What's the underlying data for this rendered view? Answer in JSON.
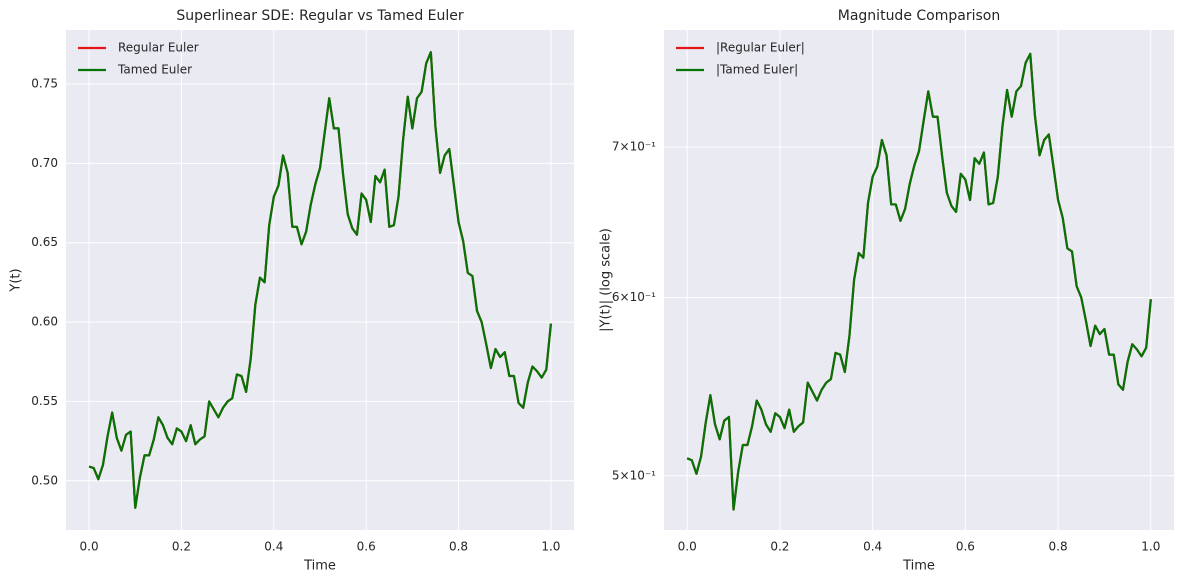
{
  "chart_data": [
    {
      "type": "line",
      "title": "Superlinear SDE: Regular vs Tamed Euler",
      "x_label": "Time",
      "y_label": "Y(t)",
      "x": [
        0,
        0.01,
        0.02,
        0.03,
        0.04,
        0.05,
        0.06,
        0.07,
        0.08,
        0.09,
        0.1,
        0.11,
        0.12,
        0.13,
        0.14,
        0.15,
        0.16,
        0.17,
        0.18,
        0.19,
        0.2,
        0.21,
        0.22,
        0.23,
        0.24,
        0.25,
        0.26,
        0.27,
        0.28,
        0.29,
        0.3,
        0.31,
        0.32,
        0.33,
        0.34,
        0.35,
        0.36,
        0.37,
        0.38,
        0.39,
        0.4,
        0.41,
        0.42,
        0.43,
        0.44,
        0.45,
        0.46,
        0.47,
        0.48,
        0.49,
        0.5,
        0.51,
        0.52,
        0.53,
        0.54,
        0.55,
        0.56,
        0.57,
        0.58,
        0.59,
        0.6,
        0.61,
        0.62,
        0.63,
        0.64,
        0.65,
        0.66,
        0.67,
        0.68,
        0.69,
        0.7,
        0.71,
        0.72,
        0.73,
        0.74,
        0.75,
        0.76,
        0.77,
        0.78,
        0.79,
        0.8,
        0.81,
        0.82,
        0.83,
        0.84,
        0.85,
        0.86,
        0.87,
        0.88,
        0.89,
        0.9,
        0.91,
        0.92,
        0.93,
        0.94,
        0.95,
        0.96,
        0.97,
        0.98,
        0.99,
        1
      ],
      "series": [
        {
          "name": "Regular Euler",
          "color": "#e8141b",
          "values": [
            0.509,
            0.508,
            0.501,
            0.51,
            0.528,
            0.543,
            0.527,
            0.519,
            0.529,
            0.531,
            0.483,
            0.502,
            0.516,
            0.516,
            0.526,
            0.54,
            0.535,
            0.527,
            0.523,
            0.533,
            0.531,
            0.525,
            0.535,
            0.523,
            0.526,
            0.528,
            0.55,
            0.545,
            0.54,
            0.546,
            0.55,
            0.552,
            0.567,
            0.566,
            0.556,
            0.577,
            0.611,
            0.628,
            0.625,
            0.661,
            0.679,
            0.686,
            0.705,
            0.694,
            0.66,
            0.66,
            0.649,
            0.657,
            0.674,
            0.687,
            0.697,
            0.719,
            0.741,
            0.722,
            0.722,
            0.693,
            0.668,
            0.659,
            0.655,
            0.681,
            0.677,
            0.663,
            0.692,
            0.688,
            0.696,
            0.66,
            0.661,
            0.679,
            0.715,
            0.742,
            0.722,
            0.741,
            0.745,
            0.763,
            0.77,
            0.723,
            0.694,
            0.705,
            0.709,
            0.686,
            0.663,
            0.651,
            0.631,
            0.629,
            0.607,
            0.6,
            0.586,
            0.571,
            0.583,
            0.578,
            0.581,
            0.566,
            0.566,
            0.549,
            0.546,
            0.562,
            0.572,
            0.569,
            0.565,
            0.57,
            0.599
          ]
        },
        {
          "name": "Tamed Euler",
          "color": "#067306",
          "values": [
            0.509,
            0.508,
            0.501,
            0.51,
            0.528,
            0.543,
            0.527,
            0.519,
            0.529,
            0.531,
            0.483,
            0.502,
            0.516,
            0.516,
            0.526,
            0.54,
            0.535,
            0.527,
            0.523,
            0.533,
            0.531,
            0.525,
            0.535,
            0.523,
            0.526,
            0.528,
            0.55,
            0.545,
            0.54,
            0.546,
            0.55,
            0.552,
            0.567,
            0.566,
            0.556,
            0.577,
            0.611,
            0.628,
            0.625,
            0.661,
            0.679,
            0.686,
            0.705,
            0.694,
            0.66,
            0.66,
            0.649,
            0.657,
            0.674,
            0.687,
            0.697,
            0.719,
            0.741,
            0.722,
            0.722,
            0.693,
            0.668,
            0.659,
            0.655,
            0.681,
            0.677,
            0.663,
            0.692,
            0.688,
            0.696,
            0.66,
            0.661,
            0.679,
            0.715,
            0.742,
            0.722,
            0.741,
            0.745,
            0.763,
            0.77,
            0.723,
            0.694,
            0.705,
            0.709,
            0.686,
            0.663,
            0.651,
            0.631,
            0.629,
            0.607,
            0.6,
            0.586,
            0.571,
            0.583,
            0.578,
            0.581,
            0.566,
            0.566,
            0.549,
            0.546,
            0.562,
            0.572,
            0.569,
            0.565,
            0.57,
            0.599
          ]
        }
      ],
      "xlim": [
        -0.05,
        1.05
      ],
      "xticks": [
        {
          "value": 0,
          "label": "0.0"
        },
        {
          "value": 0.2,
          "label": "0.2"
        },
        {
          "value": 0.4,
          "label": "0.4"
        },
        {
          "value": 0.6,
          "label": "0.6"
        },
        {
          "value": 0.8,
          "label": "0.8"
        },
        {
          "value": 1,
          "label": "1.0"
        }
      ],
      "ylim": [
        0.469,
        0.784
      ],
      "yticks": [
        {
          "value": 0.5,
          "label": "0.50"
        },
        0.55,
        {
          "value": 0.6,
          "label": "0.60"
        },
        0.65,
        {
          "value": 0.7,
          "label": "0.70"
        },
        0.75
      ],
      "grid": true,
      "legend": "upper left"
    },
    {
      "type": "line",
      "title": "Magnitude Comparison",
      "x_label": "Time",
      "y_label": "|Y(t)| (log scale)",
      "x": [
        0,
        0.01,
        0.02,
        0.03,
        0.04,
        0.05,
        0.06,
        0.07,
        0.08,
        0.09,
        0.1,
        0.11,
        0.12,
        0.13,
        0.14,
        0.15,
        0.16,
        0.17,
        0.18,
        0.19,
        0.2,
        0.21,
        0.22,
        0.23,
        0.24,
        0.25,
        0.26,
        0.27,
        0.28,
        0.29,
        0.3,
        0.31,
        0.32,
        0.33,
        0.34,
        0.35,
        0.36,
        0.37,
        0.38,
        0.39,
        0.4,
        0.41,
        0.42,
        0.43,
        0.44,
        0.45,
        0.46,
        0.47,
        0.48,
        0.49,
        0.5,
        0.51,
        0.52,
        0.53,
        0.54,
        0.55,
        0.56,
        0.57,
        0.58,
        0.59,
        0.6,
        0.61,
        0.62,
        0.63,
        0.64,
        0.65,
        0.66,
        0.67,
        0.68,
        0.69,
        0.7,
        0.71,
        0.72,
        0.73,
        0.74,
        0.75,
        0.76,
        0.77,
        0.78,
        0.79,
        0.8,
        0.81,
        0.82,
        0.83,
        0.84,
        0.85,
        0.86,
        0.87,
        0.88,
        0.89,
        0.9,
        0.91,
        0.92,
        0.93,
        0.94,
        0.95,
        0.96,
        0.97,
        0.98,
        0.99,
        1
      ],
      "series": [
        {
          "name": "|Regular Euler|",
          "color": "#e8141b",
          "values": [
            0.509,
            0.508,
            0.501,
            0.51,
            0.528,
            0.543,
            0.527,
            0.519,
            0.529,
            0.531,
            0.483,
            0.502,
            0.516,
            0.516,
            0.526,
            0.54,
            0.535,
            0.527,
            0.523,
            0.533,
            0.531,
            0.525,
            0.535,
            0.523,
            0.526,
            0.528,
            0.55,
            0.545,
            0.54,
            0.546,
            0.55,
            0.552,
            0.567,
            0.566,
            0.556,
            0.577,
            0.611,
            0.628,
            0.625,
            0.661,
            0.679,
            0.686,
            0.705,
            0.694,
            0.66,
            0.66,
            0.649,
            0.657,
            0.674,
            0.687,
            0.697,
            0.719,
            0.741,
            0.722,
            0.722,
            0.693,
            0.668,
            0.659,
            0.655,
            0.681,
            0.677,
            0.663,
            0.692,
            0.688,
            0.696,
            0.66,
            0.661,
            0.679,
            0.715,
            0.742,
            0.722,
            0.741,
            0.745,
            0.763,
            0.77,
            0.723,
            0.694,
            0.705,
            0.709,
            0.686,
            0.663,
            0.651,
            0.631,
            0.629,
            0.607,
            0.6,
            0.586,
            0.571,
            0.583,
            0.578,
            0.581,
            0.566,
            0.566,
            0.549,
            0.546,
            0.562,
            0.572,
            0.569,
            0.565,
            0.57,
            0.599
          ]
        },
        {
          "name": "|Tamed Euler|",
          "color": "#067306",
          "values": [
            0.509,
            0.508,
            0.501,
            0.51,
            0.528,
            0.543,
            0.527,
            0.519,
            0.529,
            0.531,
            0.483,
            0.502,
            0.516,
            0.516,
            0.526,
            0.54,
            0.535,
            0.527,
            0.523,
            0.533,
            0.531,
            0.525,
            0.535,
            0.523,
            0.526,
            0.528,
            0.55,
            0.545,
            0.54,
            0.546,
            0.55,
            0.552,
            0.567,
            0.566,
            0.556,
            0.577,
            0.611,
            0.628,
            0.625,
            0.661,
            0.679,
            0.686,
            0.705,
            0.694,
            0.66,
            0.66,
            0.649,
            0.657,
            0.674,
            0.687,
            0.697,
            0.719,
            0.741,
            0.722,
            0.722,
            0.693,
            0.668,
            0.659,
            0.655,
            0.681,
            0.677,
            0.663,
            0.692,
            0.688,
            0.696,
            0.66,
            0.661,
            0.679,
            0.715,
            0.742,
            0.722,
            0.741,
            0.745,
            0.763,
            0.77,
            0.723,
            0.694,
            0.705,
            0.709,
            0.686,
            0.663,
            0.651,
            0.631,
            0.629,
            0.607,
            0.6,
            0.586,
            0.571,
            0.583,
            0.578,
            0.581,
            0.566,
            0.566,
            0.549,
            0.546,
            0.562,
            0.572,
            0.569,
            0.565,
            0.57,
            0.599
          ]
        }
      ],
      "xlim": [
        -0.05,
        1.05
      ],
      "xticks": [
        {
          "value": 0,
          "label": "0.0"
        },
        {
          "value": 0.2,
          "label": "0.2"
        },
        {
          "value": 0.4,
          "label": "0.4"
        },
        {
          "value": 0.6,
          "label": "0.6"
        },
        {
          "value": 0.8,
          "label": "0.8"
        },
        {
          "value": 1,
          "label": "1.0"
        }
      ],
      "ylim": [
        0.473,
        0.789
      ],
      "yticks": [
        {
          "value": 0.5,
          "label": "5×10⁻¹"
        },
        {
          "value": 0.6,
          "label": "6×10⁻¹"
        },
        {
          "value": 0.7,
          "label": "7×10⁻¹"
        }
      ],
      "log_y": true,
      "grid": true,
      "legend": "upper left"
    }
  ]
}
